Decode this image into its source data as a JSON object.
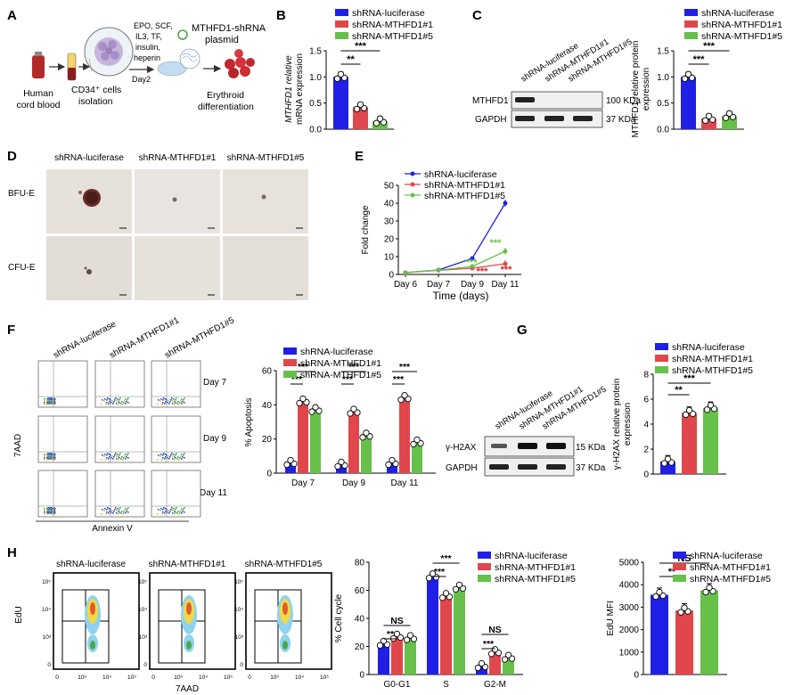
{
  "colors": {
    "luc": "#1f1fe6",
    "m1": "#e0474c",
    "m5": "#66c04a",
    "star_red": "#d41f26",
    "star_green": "#6dbf45"
  },
  "panels": {
    "A": "A",
    "B": "B",
    "C": "C",
    "D": "D",
    "E": "E",
    "F": "F",
    "G": "G",
    "H": "H"
  },
  "legend": {
    "luc": "shRNA-luciferase",
    "m1": "shRNA-MTHFD1#1",
    "m5": "shRNA-MTHFD1#5"
  },
  "A": {
    "source": [
      "Human",
      "cord blood"
    ],
    "cells": [
      "CD34⁺ cells",
      "isolation"
    ],
    "cytokines": [
      "EPO, SCF,",
      "IL3, TF,",
      "insulin,",
      "heperin"
    ],
    "day": "Day2",
    "plasmid": [
      "MTHFD1-shRNA",
      "plasmid"
    ],
    "result": [
      "Erythroid",
      "differentiation"
    ]
  },
  "C": {
    "lanes": [
      "shRNA-luciferase",
      "shRNA-MTHFD1#1",
      "shRNA-MTHFD1#5"
    ],
    "rows": [
      {
        "label": "MTHFD1",
        "size": "100 KDa"
      },
      {
        "label": "GAPDH",
        "size": "37 KDa"
      }
    ]
  },
  "D": {
    "cols": [
      "shRNA-luciferase",
      "shRNA-MTHFD1#1",
      "shRNA-MTHFD1#5"
    ],
    "rows": [
      "BFU-E",
      "CFU-E"
    ]
  },
  "F": {
    "cols": [
      "shRNA-luciferase",
      "shRNA-MTHFD1#1",
      "shRNA-MTHFD1#5"
    ],
    "days": [
      "Day 7",
      "Day 9",
      "Day 11"
    ],
    "ylabel": "7AAD",
    "xlabel": "Annexin V"
  },
  "G": {
    "lanes": [
      "shRNA-luciferase",
      "shRNA-MTHFD1#1",
      "shRNA-MTHFD1#5"
    ],
    "rows": [
      {
        "label": "γ-H2AX",
        "size": "15 KDa"
      },
      {
        "label": "GAPDH",
        "size": "37 KDa"
      }
    ]
  },
  "H": {
    "flow_cols": [
      "shRNA-luciferase",
      "shRNA-MTHFD1#1",
      "shRNA-MTHFD1#5"
    ],
    "ylabel": "EdU",
    "xlabel": "7AAD",
    "flow_ticks": [
      "10⁵",
      "10⁴",
      "10³",
      "0"
    ],
    "flow_xticks": [
      "0",
      "10³",
      "10⁴",
      "10⁵"
    ]
  },
  "chart_data": [
    {
      "id": "B",
      "type": "bar",
      "categories": [
        "shRNA-luciferase",
        "shRNA-MTHFD1#1",
        "shRNA-MTHFD1#5"
      ],
      "values": [
        1.0,
        0.42,
        0.15
      ],
      "ylabel": "MTHFD1 relative mRNA expression",
      "ylim": [
        0,
        1.5
      ],
      "yticks": [
        "0.0",
        "0.5",
        "1.0",
        "1.5"
      ],
      "sig": [
        "**",
        "***"
      ]
    },
    {
      "id": "C",
      "type": "bar",
      "categories": [
        "shRNA-luciferase",
        "shRNA-MTHFD1#1",
        "shRNA-MTHFD1#5"
      ],
      "values": [
        1.0,
        0.2,
        0.25
      ],
      "ylabel": "MTHFD1 relative protein expression",
      "ylim": [
        0,
        1.5
      ],
      "yticks": [
        "0.0",
        "0.5",
        "1.0",
        "1.5"
      ],
      "sig": [
        "***",
        "***"
      ]
    },
    {
      "id": "E",
      "type": "line",
      "x": [
        "Day 6",
        "Day 7",
        "Day 9",
        "Day 11"
      ],
      "series": [
        {
          "name": "shRNA-luciferase",
          "values": [
            1,
            2.5,
            9,
            40
          ]
        },
        {
          "name": "shRNA-MTHFD1#1",
          "values": [
            1,
            2.3,
            3.5,
            6
          ]
        },
        {
          "name": "shRNA-MTHFD1#5",
          "values": [
            1,
            2.4,
            4.5,
            13
          ]
        }
      ],
      "ylabel": "Fold change",
      "xlabel": "Time (days)",
      "ylim": [
        0,
        50
      ],
      "yticks": [
        "0",
        "10",
        "20",
        "30",
        "40",
        "50"
      ],
      "sig": "***"
    },
    {
      "id": "F",
      "type": "bar",
      "categories": [
        "Day 7",
        "Day 9",
        "Day 11"
      ],
      "series": [
        {
          "name": "shRNA-luciferase",
          "values": [
            6,
            5,
            6
          ]
        },
        {
          "name": "shRNA-MTHFD1#1",
          "values": [
            42,
            36,
            44
          ]
        },
        {
          "name": "shRNA-MTHFD1#5",
          "values": [
            37,
            22,
            18
          ]
        }
      ],
      "ylabel": "% Apoptosis",
      "ylim": [
        0,
        60
      ],
      "yticks": [
        "0",
        "20",
        "40",
        "60"
      ],
      "sig": "***"
    },
    {
      "id": "G",
      "type": "bar",
      "categories": [
        "shRNA-luciferase",
        "shRNA-MTHFD1#1",
        "shRNA-MTHFD1#5"
      ],
      "values": [
        1.0,
        4.9,
        5.3
      ],
      "ylabel": "γ-H2AX relative protein expression",
      "ylim": [
        0,
        8
      ],
      "yticks": [
        "0",
        "2",
        "4",
        "6",
        "8"
      ],
      "sig": [
        "**",
        "***"
      ]
    },
    {
      "id": "Hcc",
      "type": "bar",
      "categories": [
        "G0-G1",
        "S",
        "G2-M"
      ],
      "series": [
        {
          "name": "shRNA-luciferase",
          "values": [
            22,
            70,
            6
          ]
        },
        {
          "name": "shRNA-MTHFD1#1",
          "values": [
            27,
            56,
            16
          ]
        },
        {
          "name": "shRNA-MTHFD1#5",
          "values": [
            26,
            62,
            12
          ]
        }
      ],
      "ylabel": "% Cell cycle",
      "ylim": [
        0,
        80
      ],
      "yticks": [
        "0",
        "20",
        "40",
        "60",
        "80"
      ],
      "sig": [
        [
          "**",
          "NS"
        ],
        [
          "***",
          "***"
        ],
        [
          "***",
          "NS"
        ]
      ]
    },
    {
      "id": "Hmfi",
      "type": "bar",
      "categories": [
        "shRNA-luciferase",
        "shRNA-MTHFD1#1",
        "shRNA-MTHFD1#5"
      ],
      "values": [
        3550,
        2850,
        3750
      ],
      "ylabel": "EdU MFI",
      "ylim": [
        0,
        5000
      ],
      "yticks": [
        "0",
        "1000",
        "2000",
        "3000",
        "4000",
        "5000"
      ],
      "sig": [
        "**",
        "NS"
      ]
    }
  ]
}
